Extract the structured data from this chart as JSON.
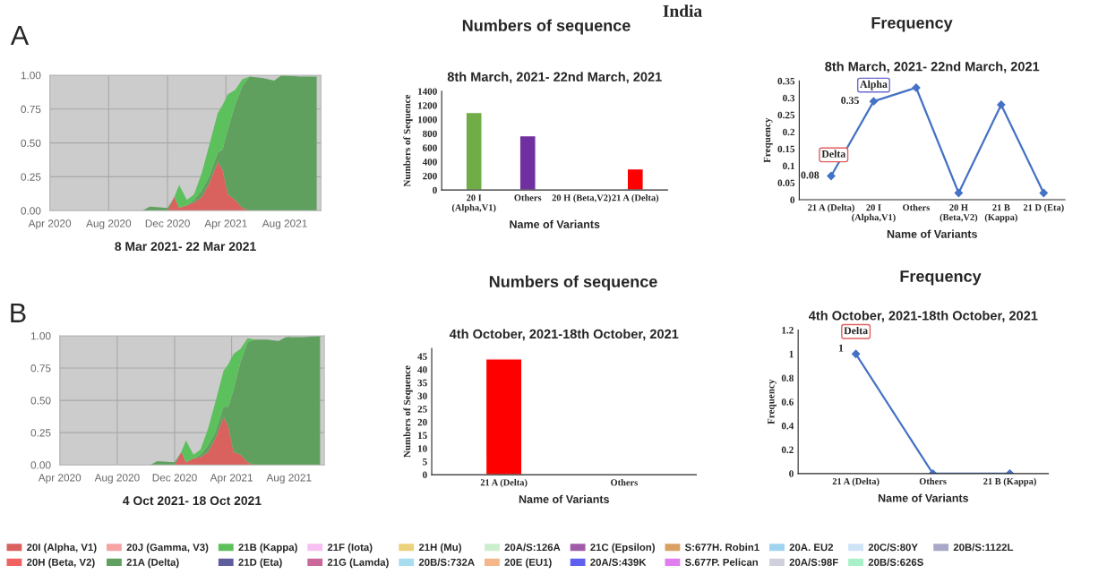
{
  "chart_data": [
    {
      "type": "area",
      "stacked": true,
      "xlabel": "8 Mar 2021- 22 Mar 2021",
      "annotations": [
        "A"
      ],
      "grid": true,
      "legend": "bottom",
      "x": [
        "2020-10-10",
        "2020-10-25",
        "2020-12-01",
        "2020-12-15",
        "2020-12-25",
        "2021-01-10",
        "2021-01-25",
        "2021-02-10",
        "2021-02-25",
        "2021-03-15",
        "2021-03-25",
        "2021-04-05",
        "2021-04-20",
        "2021-05-05",
        "2021-05-20",
        "2021-06-15",
        "2021-07-10",
        "2021-07-25",
        "2021-09-01",
        "2021-10-06"
      ],
      "xlim": [
        "2020-04-01",
        "2021-10-15"
      ],
      "xticks": [
        {
          "value": "2020-04-01",
          "label": "Apr 2020"
        },
        {
          "value": "2020-08-01",
          "label": "Aug 2020"
        },
        {
          "value": "2020-12-01",
          "label": "Dec 2020"
        },
        {
          "value": "2021-04-01",
          "label": "Apr 2021"
        },
        {
          "value": "2021-08-01",
          "label": "Aug 2021"
        }
      ],
      "ylim": [
        0,
        1
      ],
      "yticks": [
        {
          "value": 0,
          "label": "0.00"
        },
        {
          "value": 0.25,
          "label": "0.25"
        },
        {
          "value": 0.5,
          "label": "0.50"
        },
        {
          "value": 0.75,
          "label": "0.75"
        },
        {
          "value": 1,
          "label": "1.00"
        }
      ],
      "series": [
        {
          "name": "20I (Alpha, V1)",
          "color": "#d9625e",
          "values": [
            null,
            null,
            0,
            0.1,
            0.02,
            0.04,
            0.06,
            0.1,
            0.2,
            0.36,
            0.3,
            0.12,
            0.08,
            0.02,
            0,
            null,
            null,
            null,
            null,
            null
          ]
        },
        {
          "name": "20H (Beta, V2)",
          "color": "#f06262",
          "values": [
            null,
            null,
            null,
            null,
            null,
            null,
            null,
            null,
            null,
            null,
            null,
            null,
            null,
            null,
            null,
            null,
            null,
            null,
            null,
            null
          ]
        },
        {
          "name": "20J (Gamma, V3)",
          "color": "#f5a3a3",
          "values": [
            null,
            null,
            null,
            null,
            null,
            null,
            null,
            null,
            null,
            null,
            null,
            null,
            null,
            null,
            null,
            null,
            null,
            null,
            null,
            null
          ]
        },
        {
          "name": "21A (Delta)",
          "color": "#5fa05f",
          "values": [
            0,
            0.03,
            0.02,
            0,
            0,
            0,
            0.02,
            0.05,
            0.05,
            0.07,
            0.15,
            0.48,
            0.7,
            0.9,
            0.99,
            0.98,
            0.96,
            1.0,
            0.99,
            0.99
          ]
        },
        {
          "name": "21B (Kappa)",
          "color": "#5cc05c",
          "values": [
            null,
            null,
            null,
            0,
            0.17,
            0.04,
            0.04,
            0.13,
            0.23,
            0.29,
            0.33,
            0.26,
            0.11,
            0.05,
            0,
            null,
            null,
            null,
            null,
            null
          ]
        },
        {
          "name": "21D (Eta)",
          "color": "#5e5e9e",
          "values": [
            null,
            null,
            null,
            null,
            null,
            null,
            null,
            null,
            null,
            null,
            null,
            null,
            null,
            null,
            null,
            null,
            null,
            null,
            null,
            null
          ]
        },
        {
          "name": "21F (Iota)",
          "color": "#f7bff2",
          "values": [
            null,
            null,
            null,
            null,
            null,
            null,
            null,
            null,
            null,
            null,
            null,
            null,
            null,
            null,
            null,
            null,
            null,
            null,
            null,
            null
          ]
        },
        {
          "name": "21G (Lamda)",
          "color": "#c9689a",
          "values": [
            null,
            null,
            null,
            null,
            null,
            null,
            null,
            null,
            null,
            null,
            null,
            null,
            null,
            null,
            null,
            null,
            null,
            null,
            null,
            null
          ]
        },
        {
          "name": "21H (Mu)",
          "color": "#ecd27a",
          "values": [
            null,
            null,
            null,
            null,
            null,
            null,
            null,
            null,
            null,
            null,
            null,
            null,
            null,
            null,
            null,
            null,
            null,
            null,
            null,
            null
          ]
        },
        {
          "name": "20B/S:732A",
          "color": "#a8dcef",
          "values": [
            null,
            null,
            null,
            null,
            null,
            null,
            null,
            null,
            null,
            null,
            null,
            null,
            null,
            null,
            null,
            null,
            null,
            null,
            null,
            null
          ]
        },
        {
          "name": "20A/S:126A",
          "color": "#cdeecd",
          "values": [
            null,
            null,
            null,
            null,
            null,
            null,
            null,
            null,
            null,
            null,
            null,
            null,
            null,
            null,
            null,
            null,
            null,
            null,
            null,
            null
          ]
        },
        {
          "name": "20E (EU1)",
          "color": "#f5b68a",
          "values": [
            null,
            null,
            null,
            null,
            null,
            null,
            null,
            null,
            null,
            null,
            null,
            null,
            null,
            null,
            null,
            null,
            null,
            null,
            null,
            null
          ]
        },
        {
          "name": "21C (Epsilon)",
          "color": "#a05ca8",
          "values": [
            null,
            null,
            null,
            null,
            null,
            null,
            null,
            null,
            null,
            null,
            null,
            null,
            null,
            null,
            null,
            null,
            null,
            null,
            null,
            null
          ]
        },
        {
          "name": "20A/S:439K",
          "color": "#6060f0",
          "values": [
            null,
            null,
            null,
            null,
            null,
            null,
            null,
            null,
            null,
            null,
            null,
            null,
            null,
            null,
            null,
            null,
            null,
            null,
            null,
            null
          ]
        },
        {
          "name": "S:677H. Robin1",
          "color": "#d9a064",
          "values": [
            null,
            null,
            null,
            null,
            null,
            null,
            null,
            null,
            null,
            null,
            null,
            null,
            null,
            null,
            null,
            null,
            null,
            null,
            null,
            null
          ]
        },
        {
          "name": "S.677P. Pelican",
          "color": "#e07ef0",
          "values": [
            null,
            null,
            null,
            null,
            null,
            null,
            null,
            null,
            null,
            null,
            null,
            null,
            null,
            null,
            null,
            null,
            null,
            null,
            null,
            null
          ]
        },
        {
          "name": "20A. EU2",
          "color": "#9fd3ef",
          "values": [
            null,
            null,
            null,
            null,
            null,
            null,
            null,
            null,
            null,
            null,
            null,
            null,
            null,
            null,
            null,
            null,
            null,
            null,
            null,
            null
          ]
        },
        {
          "name": "20A/S:98F",
          "color": "#d0d0dc",
          "values": [
            null,
            null,
            null,
            null,
            null,
            null,
            null,
            null,
            null,
            null,
            null,
            null,
            null,
            null,
            null,
            null,
            null,
            null,
            null,
            null
          ]
        },
        {
          "name": "20C/S:80Y",
          "color": "#cfe3f7",
          "values": [
            null,
            null,
            null,
            null,
            null,
            null,
            null,
            null,
            null,
            null,
            null,
            null,
            null,
            null,
            null,
            null,
            null,
            null,
            null,
            null
          ]
        },
        {
          "name": "20B/S:626S",
          "color": "#a8f0c8",
          "values": [
            null,
            null,
            null,
            null,
            null,
            null,
            null,
            null,
            null,
            null,
            null,
            null,
            null,
            null,
            null,
            null,
            null,
            null,
            null,
            null
          ]
        },
        {
          "name": "20B/S:1122L",
          "color": "#a8a8c8",
          "values": [
            null,
            null,
            null,
            null,
            null,
            null,
            null,
            null,
            null,
            null,
            null,
            null,
            null,
            null,
            null,
            null,
            null,
            null,
            null,
            null
          ]
        }
      ]
    },
    {
      "type": "bar",
      "title": "8th March, 2021- 22nd March, 2021",
      "xlabel": "Name of Variants",
      "ylabel": "Numbers of Sequence",
      "annotations": [
        "India",
        "Numbers of sequence"
      ],
      "categories": [
        "20 I\n(Alpha,V1)",
        "Others",
        "20 H (Beta,V2)",
        "21 A (Delta)"
      ],
      "values": [
        1100,
        770,
        10,
        300
      ],
      "colors": [
        "#70ad47",
        "#7030a0",
        "#4472c4",
        "#ff0000"
      ],
      "ylim": [
        0,
        1400
      ],
      "yticks": [
        0,
        200,
        400,
        600,
        800,
        1000,
        1200,
        1400
      ]
    },
    {
      "type": "line",
      "title": "8th March, 2021- 22nd March, 2021",
      "xlabel": "Name of Variants",
      "ylabel": "Frequency",
      "marker": "diamond",
      "line_style": "solid",
      "annotations": [
        "Frequency",
        {
          "text": "Delta",
          "x": "21 A (Delta)",
          "y": 0.07
        },
        {
          "text": "0.08",
          "x": "21 A (Delta)",
          "y": 0.07
        },
        {
          "text": "Alpha",
          "x": "20 I\n(Alpha,V1)",
          "y": 0.29
        },
        {
          "text": "0.35",
          "x": "20 I\n(Alpha,V1)",
          "y": 0.29
        }
      ],
      "categories": [
        "21 A (Delta)",
        "20 I\n(Alpha,V1)",
        "Others",
        "20 H\n(Beta,V2)",
        "21 B\n(Kappa)",
        "21 D (Eta)"
      ],
      "series": [
        {
          "color": "#4472c4",
          "values": [
            0.07,
            0.29,
            0.33,
            0.02,
            0.28,
            0.02
          ]
        }
      ],
      "ylim": [
        0,
        0.35
      ],
      "yticks": [
        0,
        0.05,
        {
          "value": 0.1,
          "label": "0.1"
        },
        0.15,
        {
          "value": 0.2,
          "label": "0.2"
        },
        0.25,
        {
          "value": 0.3,
          "label": "0.3"
        },
        0.35
      ]
    },
    {
      "type": "area",
      "stacked": true,
      "xlabel": "4 Oct 2021- 18 Oct 2021",
      "annotations": [
        "B"
      ],
      "grid": true,
      "x": [
        "2020-10-10",
        "2020-10-25",
        "2020-12-01",
        "2020-12-15",
        "2020-12-25",
        "2021-01-10",
        "2021-01-25",
        "2021-02-10",
        "2021-02-25",
        "2021-03-15",
        "2021-03-25",
        "2021-04-05",
        "2021-04-20",
        "2021-05-05",
        "2021-05-20",
        "2021-06-15",
        "2021-07-10",
        "2021-07-25",
        "2021-09-01",
        "2021-10-06"
      ],
      "xlim": [
        "2020-04-01",
        "2021-10-15"
      ],
      "xticks": [
        {
          "value": "2020-04-01",
          "label": "Apr 2020"
        },
        {
          "value": "2020-08-01",
          "label": "Aug 2020"
        },
        {
          "value": "2020-12-01",
          "label": "Dec 2020"
        },
        {
          "value": "2021-04-01",
          "label": "Apr 2021"
        },
        {
          "value": "2021-08-01",
          "label": "Aug 2021"
        }
      ],
      "ylim": [
        0,
        1
      ],
      "yticks": [
        {
          "value": 0,
          "label": "0.00"
        },
        {
          "value": 0.25,
          "label": "0.25"
        },
        {
          "value": 0.5,
          "label": "0.50"
        },
        {
          "value": 0.75,
          "label": "0.75"
        },
        {
          "value": 1,
          "label": "1.00"
        }
      ],
      "series": [
        {
          "color": "#d9625e",
          "values": [
            null,
            null,
            0,
            0.1,
            0.02,
            0.05,
            0.06,
            0.1,
            0.2,
            0.37,
            0.3,
            0.1,
            0.08,
            0.02,
            0,
            null,
            null,
            null,
            null,
            null
          ]
        },
        {
          "color": "#5fa05f",
          "values": [
            0,
            0.03,
            0.02,
            0,
            0,
            0,
            0.02,
            0.05,
            0.05,
            0.08,
            0.15,
            0.48,
            0.72,
            0.93,
            0.97,
            0.97,
            0.96,
            0.99,
            0.99,
            1.0
          ]
        },
        {
          "color": "#5cc05c",
          "values": [
            null,
            null,
            null,
            0,
            0.17,
            0.03,
            0.04,
            0.13,
            0.23,
            0.28,
            0.33,
            0.28,
            0.1,
            0.03,
            0,
            null,
            null,
            null,
            null,
            null
          ]
        }
      ]
    },
    {
      "type": "bar",
      "title": "4th October, 2021-18th October, 2021",
      "xlabel": "Name of Variants",
      "ylabel": "Numbers of Sequence",
      "annotations": [
        "Numbers of sequence"
      ],
      "categories": [
        "21 A (Delta)",
        "Others"
      ],
      "values": [
        44,
        null
      ],
      "colors": [
        "#ff0000",
        "#ff0000"
      ],
      "ylim": [
        0,
        48
      ],
      "yticks": [
        0,
        5,
        10,
        15,
        20,
        25,
        30,
        35,
        40,
        45
      ]
    },
    {
      "type": "line",
      "title": "4th October, 2021-18th October, 2021",
      "xlabel": "Name of Variants",
      "ylabel": "Frequency",
      "marker": "diamond",
      "line_style": "solid",
      "annotations": [
        "Frequency",
        {
          "text": "Delta",
          "x": "21 A (Delta)",
          "y": 1
        },
        {
          "text": "1",
          "x": "21 A (Delta)",
          "y": 1
        }
      ],
      "categories": [
        "21 A (Delta)",
        "Others",
        "21 B (Kappa)"
      ],
      "series": [
        {
          "color": "#4472c4",
          "values": [
            1,
            0,
            0
          ]
        }
      ],
      "ylim": [
        0,
        1.2
      ],
      "yticks": [
        0,
        {
          "value": 0.2,
          "label": "0.2"
        },
        {
          "value": 0.4,
          "label": "0.4"
        },
        {
          "value": 0.6,
          "label": "0.6"
        },
        {
          "value": 0.8,
          "label": "0.8"
        },
        1,
        {
          "value": 1.2,
          "label": "1.2"
        }
      ]
    }
  ]
}
